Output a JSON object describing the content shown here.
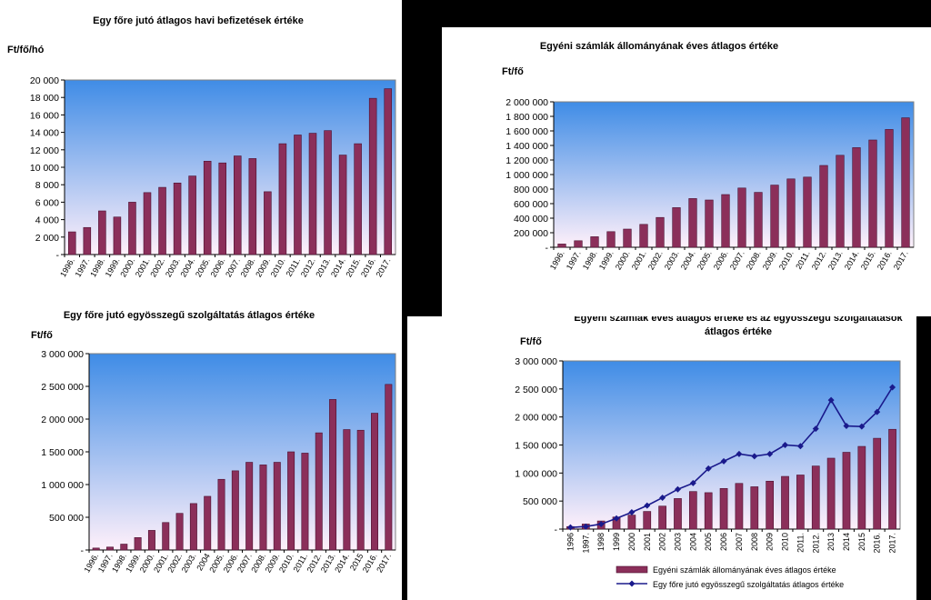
{
  "colors": {
    "bar": "#8B2F5A",
    "bar_edge": "#4A1030",
    "line": "#1A1A8C",
    "plot_top": "#3F8CE6",
    "plot_bottom": "#FFF0FA"
  },
  "chart_data": [
    {
      "type": "bar",
      "title": "Egy főre jutó átlagos havi befizetések értéke",
      "ylabel": "Ft/fő/hó",
      "xlabel": "",
      "categories": [
        "1996.",
        "1997.",
        "1998.",
        "1999.",
        "2000.",
        "2001.",
        "2002.",
        "2003.",
        "2004.",
        "2005.",
        "2006.",
        "2007.",
        "2008.",
        "2009.",
        "2010.",
        "2011.",
        "2012.",
        "2013.",
        "2014.",
        "2015.",
        "2016.",
        "2017."
      ],
      "values": [
        2600,
        3100,
        5000,
        4300,
        6000,
        7100,
        7700,
        8200,
        9000,
        10700,
        10500,
        11300,
        11000,
        7200,
        12700,
        13700,
        13900,
        14200,
        11400,
        12700,
        17900,
        19000
      ],
      "ylim": [
        0,
        20000
      ],
      "yticks": [
        0,
        2000,
        4000,
        6000,
        8000,
        10000,
        12000,
        14000,
        16000,
        18000,
        20000
      ],
      "ytick_labels": [
        "-",
        "2 000",
        "4 000",
        "6 000",
        "8 000",
        "10 000",
        "12 000",
        "14 000",
        "16 000",
        "18 000",
        "20 000"
      ],
      "grid": false,
      "legend": "none"
    },
    {
      "type": "bar",
      "title": "Egyéni számlák állományának  éves átlagos értéke",
      "ylabel": "Ft/fő",
      "xlabel": "",
      "categories": [
        "1996.",
        "1997.",
        "1998.",
        "1999.",
        "2000.",
        "2001.",
        "2002.",
        "2003.",
        "2004.",
        "2005.",
        "2006.",
        "2007.",
        "2008.",
        "2009.",
        "2010.",
        "2011.",
        "2012.",
        "2013.",
        "2014.",
        "2015.",
        "2016.",
        "2017."
      ],
      "values": [
        45000,
        90000,
        145000,
        215000,
        250000,
        315000,
        410000,
        545000,
        670000,
        650000,
        725000,
        815000,
        755000,
        855000,
        940000,
        965000,
        1125000,
        1265000,
        1370000,
        1475000,
        1620000,
        1780000
      ],
      "ylim": [
        0,
        2000000
      ],
      "yticks": [
        0,
        200000,
        400000,
        600000,
        800000,
        1000000,
        1200000,
        1400000,
        1600000,
        1800000,
        2000000
      ],
      "ytick_labels": [
        "-",
        "200 000",
        "400 000",
        "600 000",
        "800 000",
        "1 000 000",
        "1 200 000",
        "1 400 000",
        "1 600 000",
        "1 800 000",
        "2 000 000"
      ],
      "grid": false,
      "legend": "none"
    },
    {
      "type": "bar",
      "title": "Egy főre jutó egyösszegű szolgáltatás átlagos értéke",
      "ylabel": "Ft/fő",
      "xlabel": "",
      "categories": [
        "1996.",
        "1997.",
        "1998.",
        "1999.",
        "2000.",
        "2001.",
        "2002.",
        "2003.",
        "2004",
        "2005.",
        "2006.",
        "2007.",
        "2008.",
        "2009.",
        "2010.",
        "2011.",
        "2012.",
        "2013.",
        "2014.",
        "2015",
        "2016.",
        "2017."
      ],
      "values": [
        30000,
        45000,
        90000,
        190000,
        300000,
        420000,
        560000,
        710000,
        820000,
        1080000,
        1210000,
        1340000,
        1300000,
        1340000,
        1500000,
        1480000,
        1790000,
        2300000,
        1840000,
        1830000,
        2090000,
        2530000
      ],
      "ylim": [
        0,
        3000000
      ],
      "yticks": [
        0,
        500000,
        1000000,
        1500000,
        2000000,
        2500000,
        3000000
      ],
      "ytick_labels": [
        "-",
        "500 000",
        "1 000 000",
        "1 500 000",
        "2 000 000",
        "2 500 000",
        "3 000 000"
      ],
      "grid": false,
      "legend": "none"
    },
    {
      "type": "bar+line",
      "title": "Egyéni számlák éves átlagos értéke és az egyösszegű szolgáltatások átlagos értéke",
      "title_lines": [
        "Egyéni számlák éves átlagos értéke és az egyösszegű szolgáltatások",
        "átlagos értéke"
      ],
      "ylabel": "Ft/fő",
      "xlabel": "",
      "categories": [
        "1996",
        "1997.",
        "1998",
        "1999",
        "2000",
        "2001",
        "2002",
        "2003",
        "2004",
        "2005",
        "2006",
        "2007",
        "2008",
        "2009",
        "2010",
        "2011.",
        "2012.",
        "2013",
        "2014",
        "2015",
        "2016.",
        "2017."
      ],
      "series": [
        {
          "name": "Egyéni számlák állományának éves átlagos értéke",
          "type": "bar",
          "values": [
            45000,
            90000,
            145000,
            215000,
            250000,
            315000,
            410000,
            545000,
            670000,
            650000,
            725000,
            815000,
            755000,
            855000,
            940000,
            965000,
            1125000,
            1265000,
            1370000,
            1475000,
            1620000,
            1780000
          ]
        },
        {
          "name": "Egy főre jutó egyösszegű szolgáltatás átlagos értéke",
          "type": "line",
          "values": [
            30000,
            45000,
            90000,
            190000,
            300000,
            420000,
            560000,
            710000,
            820000,
            1080000,
            1210000,
            1340000,
            1300000,
            1340000,
            1500000,
            1480000,
            1790000,
            2300000,
            1840000,
            1830000,
            2090000,
            2530000
          ]
        }
      ],
      "ylim": [
        0,
        3000000
      ],
      "yticks": [
        0,
        500000,
        1000000,
        1500000,
        2000000,
        2500000,
        3000000
      ],
      "ytick_labels": [
        "-",
        "500 000",
        "1 000 000",
        "1 500 000",
        "2 000 000",
        "2 500 000",
        "3 000 000"
      ],
      "grid": false,
      "legend": "bottom"
    }
  ]
}
